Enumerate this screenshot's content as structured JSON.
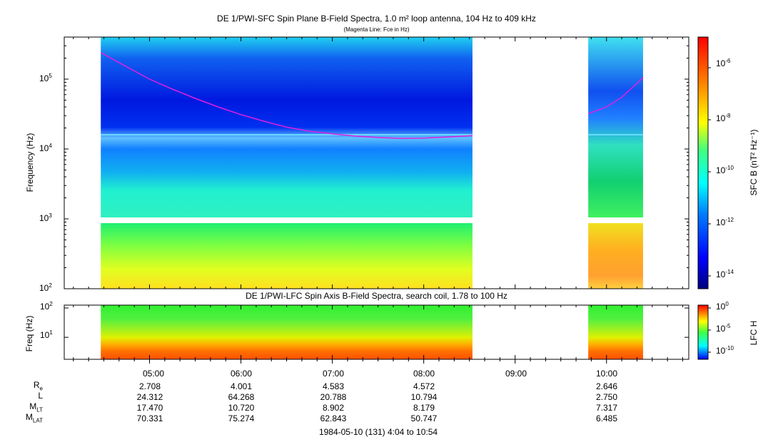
{
  "top_panel": {
    "title": "DE 1/PWI-SFC  Spin Plane B-Field Spectra, 1.0 m² loop antenna, 104 Hz to 409 kHz",
    "subtitle": "(Magenta Line: Fce in Hz)",
    "ylabel": "Frequency (Hz)",
    "yticks": [
      {
        "base": "10",
        "exp": "2"
      },
      {
        "base": "10",
        "exp": "3"
      },
      {
        "base": "10",
        "exp": "4"
      },
      {
        "base": "10",
        "exp": "5"
      }
    ],
    "colorbar_label": "SFC B (nT² Hz⁻¹)",
    "colorbar_ticks": [
      {
        "base": "10",
        "exp": "-6"
      },
      {
        "base": "10",
        "exp": "-8"
      },
      {
        "base": "10",
        "exp": "-10"
      },
      {
        "base": "10",
        "exp": "-12"
      },
      {
        "base": "10",
        "exp": "-14"
      }
    ]
  },
  "bottom_panel": {
    "title": "DE 1/PWI-LFC  Spin Axis B-Field Spectra, search coil, 1.78 to 100 Hz",
    "ylabel": "Freq (Hz)",
    "yticks": [
      {
        "base": "10",
        "exp": "1"
      },
      {
        "base": "10",
        "exp": "2"
      }
    ],
    "colorbar_label": "LFC H",
    "colorbar_ticks": [
      {
        "base": "10",
        "exp": "0"
      },
      {
        "base": "10",
        "exp": "-5"
      },
      {
        "base": "10",
        "exp": "-10"
      }
    ]
  },
  "time_axis": {
    "ticks": [
      "05:00",
      "06:00",
      "07:00",
      "08:00",
      "09:00",
      "10:00"
    ],
    "footer": "1984-05-10 (131) 4:04 to 10:54"
  },
  "ephemeris": {
    "labels": [
      {
        "main": "R",
        "sub": "e"
      },
      {
        "main": "L",
        "sub": ""
      },
      {
        "main": "M",
        "sub": "LT"
      },
      {
        "main": "M",
        "sub": "LAT"
      }
    ],
    "columns": [
      {
        "time": "05:00",
        "values": [
          "2.708",
          "24.312",
          "17.470",
          "70.331"
        ]
      },
      {
        "time": "06:00",
        "values": [
          "4.001",
          "64.268",
          "10.720",
          "75.274"
        ]
      },
      {
        "time": "07:00",
        "values": [
          "4.583",
          "20.788",
          "8.902",
          "62.843"
        ]
      },
      {
        "time": "08:00",
        "values": [
          "4.572",
          "10.794",
          "8.179",
          "50.747"
        ]
      },
      {
        "time": "10:00",
        "values": [
          "2.646",
          "2.750",
          "7.317",
          "6.485"
        ]
      }
    ]
  },
  "colors": {
    "magenta_line": "#e020e0",
    "colormap": [
      "#00007f",
      "#0000ff",
      "#0080ff",
      "#00ffff",
      "#80ff80",
      "#ffff00",
      "#ff8000",
      "#ff0000"
    ]
  },
  "chart_data": [
    {
      "type": "heatmap",
      "title": "DE 1/PWI-SFC  Spin Plane B-Field Spectra, 1.0 m² loop antenna, 104 Hz to 409 kHz",
      "ylabel": "Frequency (Hz)",
      "yscale": "log",
      "ylim": [
        100,
        409000
      ],
      "xlim": [
        "04:04",
        "10:54"
      ],
      "data_intervals": [
        [
          "04:28",
          "08:32"
        ],
        [
          "09:48",
          "10:24"
        ]
      ],
      "zlabel": "SFC B (nT² Hz⁻¹)",
      "zscale": "log",
      "zlim": [
        3e-15,
        1e-05
      ],
      "series": [
        {
          "name": "Fce in Hz",
          "color": "#e020e0",
          "x": [
            "04:28",
            "04:45",
            "05:00",
            "05:15",
            "05:30",
            "05:45",
            "06:00",
            "06:15",
            "06:30",
            "06:45",
            "07:00",
            "07:15",
            "07:30",
            "07:45",
            "08:00",
            "08:15",
            "08:32",
            "09:48",
            "10:00",
            "10:10",
            "10:24"
          ],
          "y": [
            240000,
            150000,
            100000,
            72000,
            53000,
            40000,
            31000,
            25000,
            20500,
            18000,
            16500,
            15300,
            14600,
            14200,
            14300,
            14800,
            15500,
            32000,
            40000,
            55000,
            105000
          ]
        }
      ]
    },
    {
      "type": "heatmap",
      "title": "DE 1/PWI-LFC  Spin Axis B-Field Spectra, search coil, 1.78 to 100 Hz",
      "ylabel": "Freq (Hz)",
      "yscale": "log",
      "ylim": [
        1.78,
        100
      ],
      "xlim": [
        "04:04",
        "10:54"
      ],
      "data_intervals": [
        [
          "04:28",
          "08:32"
        ],
        [
          "09:48",
          "10:24"
        ]
      ],
      "zlabel": "LFC H",
      "zscale": "log",
      "zlim": [
        1e-12,
        1
      ]
    }
  ]
}
